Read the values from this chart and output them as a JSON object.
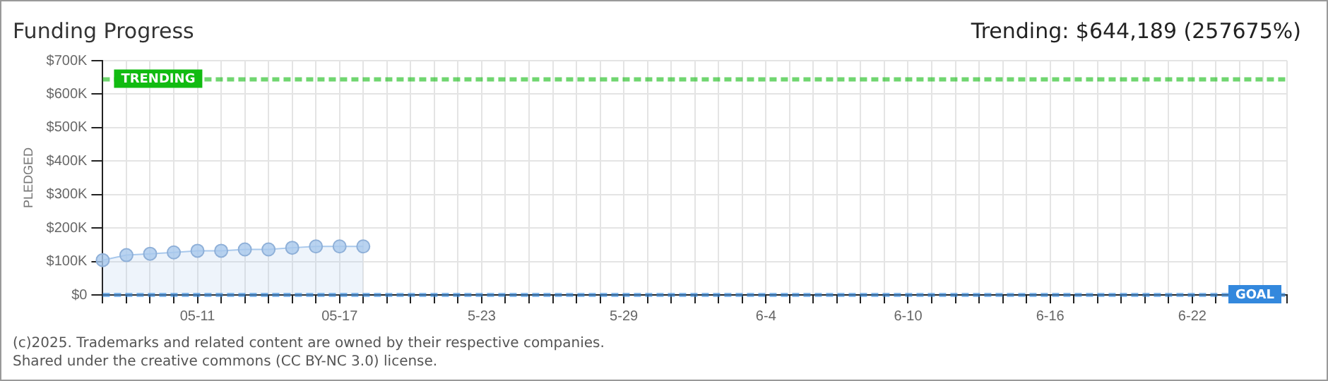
{
  "chart_data": {
    "type": "area",
    "title": "Funding Progress",
    "subtitle": "Trending:  $644,189 (257675%)",
    "ylabel": "PLEDGED",
    "categories": [
      null,
      null,
      null,
      null,
      "05-11",
      null,
      null,
      null,
      null,
      null,
      "05-17",
      null,
      null,
      null,
      null,
      null,
      "5-23",
      null,
      null,
      null,
      null,
      null,
      "5-29",
      null,
      null,
      null,
      null,
      null,
      "6-4",
      null,
      null,
      null,
      null,
      null,
      "6-10",
      null,
      null,
      null,
      null,
      null,
      "6-16",
      null,
      null,
      null,
      null,
      null,
      "6-22",
      null,
      null,
      null,
      null
    ],
    "series": [
      {
        "color": "#a8c8ec",
        "values": [
          104000,
          119000,
          123000,
          127000,
          132000,
          132000,
          136000,
          136000,
          141000,
          145000,
          145000,
          145000,
          null,
          null,
          null,
          null,
          null,
          null,
          null,
          null,
          null,
          null,
          null,
          null,
          null,
          null,
          null,
          null,
          null,
          null,
          null,
          null,
          null,
          null,
          null,
          null,
          null,
          null,
          null,
          null,
          null,
          null,
          null,
          null,
          null,
          null,
          null,
          null,
          null,
          null,
          null
        ]
      }
    ],
    "ylim": [
      0,
      700000
    ],
    "yticks": [
      {
        "value": 0,
        "label": "$0"
      },
      {
        "value": 100000,
        "label": "$100K"
      },
      {
        "value": 200000,
        "label": "$200K"
      },
      {
        "value": 300000,
        "label": "$300K"
      },
      {
        "value": 400000,
        "label": "$400K"
      },
      {
        "value": 500000,
        "label": "$500K"
      },
      {
        "value": 600000,
        "label": "$600K"
      },
      {
        "value": 700000,
        "label": "$700K"
      }
    ],
    "ref_lines": [
      {
        "axis": "y",
        "value": 644189,
        "label": "TRENDING",
        "color": "#11bb11",
        "line_style": "dashed"
      },
      {
        "axis": "y",
        "value": 250,
        "label": "GOAL",
        "color": "#3388dd",
        "line_style": "dashed"
      }
    ],
    "grid": true,
    "legend": false,
    "marker": "circle",
    "line_style": "solid",
    "annotations": [
      "(c)2025. Trademarks and related content are owned by their respective companies.",
      "Shared under the creative commons (CC BY-NC 3.0) license."
    ]
  }
}
